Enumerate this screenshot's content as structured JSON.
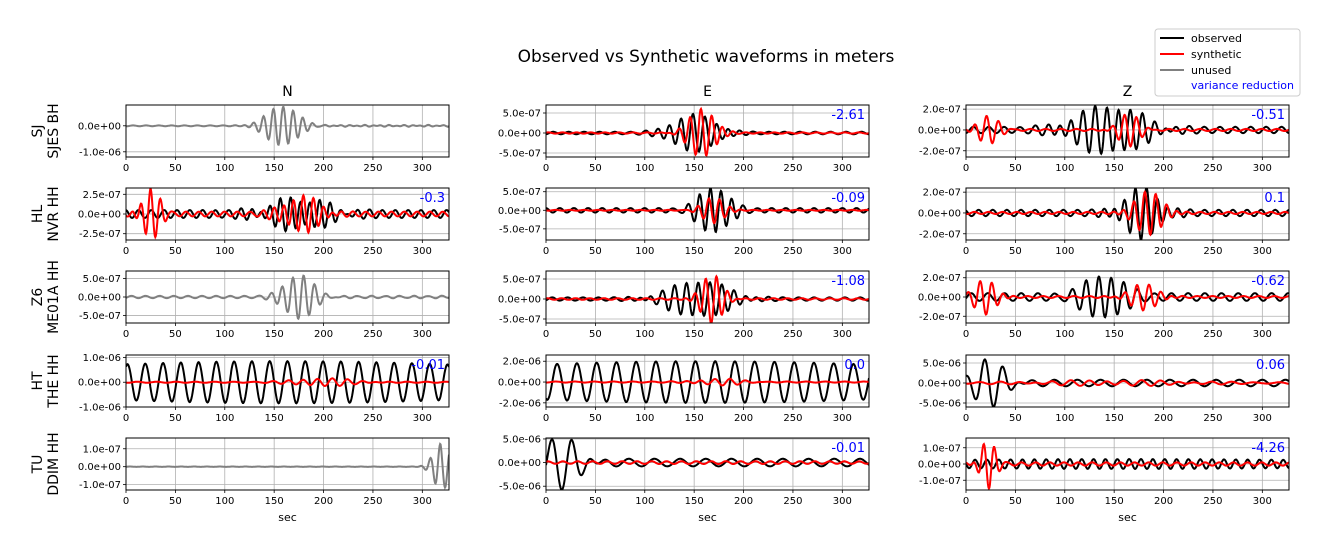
{
  "chart_data": {
    "type": "line",
    "title": "Observed vs Synthetic waveforms in meters",
    "columns": [
      "N",
      "E",
      "Z"
    ],
    "xlabel": "sec",
    "xlim": [
      0,
      327
    ],
    "xticks": [
      0,
      50,
      100,
      150,
      200,
      250,
      300
    ],
    "legend": {
      "placement": "top-right",
      "entries": [
        {
          "label": "observed",
          "color": "#000000"
        },
        {
          "label": "synthetic",
          "color": "#ff0000"
        },
        {
          "label": "unused",
          "color": "#808080"
        },
        {
          "label": "variance reduction",
          "color": "#0000ff"
        }
      ]
    },
    "grid": true,
    "stations": [
      {
        "network": "SJ",
        "station": "SJES BH"
      },
      {
        "network": "HL",
        "station": "NVR HH"
      },
      {
        "network": "Z6",
        "station": "ME01A HH"
      },
      {
        "network": "HT",
        "station": "THE HH"
      },
      {
        "network": "TU",
        "station": "DDIM HH"
      }
    ],
    "panels": [
      [
        {
          "used": false,
          "ylim": [
            -1.2e-06,
            8e-07
          ],
          "yticks": [
            [
              0,
              "0.0e+00"
            ],
            [
              -1e-06,
              "-1.0e-06"
            ]
          ],
          "vr": "",
          "obs": {
            "center": 158,
            "width": 22,
            "amp": 7.5e-07,
            "period": 10,
            "bg": 1.5e-08,
            "tail": 2e-08
          }
        },
        {
          "used": true,
          "ylim": [
            -6e-07,
            7e-07
          ],
          "yticks": [
            [
              5e-07,
              "5.0e-07"
            ],
            [
              0,
              "0.0e+00"
            ],
            [
              -5e-07,
              "-5.0e-07"
            ]
          ],
          "vr": "-2.61",
          "obs": {
            "center": 150,
            "width": 30,
            "amp": 4.5e-07,
            "period": 12,
            "bg": 3e-08,
            "tail": 0
          },
          "syn": {
            "center": 158,
            "width": 18,
            "amp": 6e-07,
            "period": 11,
            "bg": 1.5e-08
          }
        },
        {
          "used": true,
          "ylim": [
            -2.6e-07,
            2.4e-07
          ],
          "yticks": [
            [
              2e-07,
              "2.0e-07"
            ],
            [
              0,
              "0.0e+00"
            ],
            [
              -2e-07,
              "-2.0e-07"
            ]
          ],
          "vr": "-0.51",
          "obs": {
            "center": 145,
            "width": 45,
            "amp": 2.3e-07,
            "period": 12,
            "bg": 3e-08,
            "tail": 0
          },
          "syn": {
            "center": 22,
            "width": 15,
            "amp": 1.3e-07,
            "period": 12,
            "bg": 1e-08,
            "center2": 165,
            "width2": 15,
            "amp2": 1.5e-07
          }
        }
      ],
      [
        {
          "used": true,
          "ylim": [
            -3.3e-07,
            3.3e-07
          ],
          "yticks": [
            [
              2.5e-07,
              "2.5e-07"
            ],
            [
              0,
              "0.0e+00"
            ],
            [
              -2.5e-07,
              "-2.5e-07"
            ]
          ],
          "vr": "-0.3",
          "obs": {
            "center": 175,
            "width": 40,
            "amp": 1.9e-07,
            "period": 10,
            "bg": 5e-08,
            "tail": 0
          },
          "syn": {
            "center": 25,
            "width": 12,
            "amp": 3.2e-07,
            "period": 10,
            "bg": 3e-08,
            "center2": 178,
            "width2": 25,
            "amp2": 2.2e-07
          }
        },
        {
          "used": true,
          "ylim": [
            -8e-07,
            6e-07
          ],
          "yticks": [
            [
              5e-07,
              "5.0e-07"
            ],
            [
              0,
              "0.0e+00"
            ],
            [
              -5e-07,
              "-5.0e-07"
            ]
          ],
          "vr": "-0.09",
          "obs": {
            "center": 170,
            "width": 20,
            "amp": 6.5e-07,
            "period": 11,
            "bg": 6e-08,
            "tail": 0
          },
          "syn": {
            "center": 170,
            "width": 15,
            "amp": 3.5e-07,
            "period": 11,
            "bg": 1e-08
          }
        },
        {
          "used": true,
          "ylim": [
            -2.6e-07,
            2.4e-07
          ],
          "yticks": [
            [
              2e-07,
              "2.0e-07"
            ],
            [
              0,
              "0.0e+00"
            ],
            [
              -2e-07,
              "-2.0e-07"
            ]
          ],
          "vr": "0.1",
          "obs": {
            "center": 178,
            "width": 25,
            "amp": 2.3e-07,
            "period": 11,
            "bg": 3e-08,
            "tail": 0
          },
          "syn": {
            "center": 185,
            "width": 20,
            "amp": 2e-07,
            "period": 11,
            "bg": 1e-08
          }
        }
      ],
      [
        {
          "used": false,
          "ylim": [
            -7e-07,
            7e-07
          ],
          "yticks": [
            [
              5e-07,
              "5.0e-07"
            ],
            [
              0,
              "0.0e+00"
            ],
            [
              -5e-07,
              "-5.0e-07"
            ]
          ],
          "vr": "",
          "obs": {
            "center": 175,
            "width": 20,
            "amp": 6e-07,
            "period": 11,
            "bg": 3e-08,
            "tail": 5e-09
          }
        },
        {
          "used": true,
          "ylim": [
            -6e-07,
            7e-07
          ],
          "yticks": [
            [
              5e-07,
              "5.0e-07"
            ],
            [
              0,
              "0.0e+00"
            ],
            [
              -5e-07,
              "-5.0e-07"
            ]
          ],
          "vr": "-1.08",
          "obs": {
            "center": 155,
            "width": 40,
            "amp": 4.5e-07,
            "period": 12,
            "bg": 4e-08,
            "tail": 0
          },
          "syn": {
            "center": 168,
            "width": 15,
            "amp": 6e-07,
            "period": 11,
            "bg": 2e-08
          }
        },
        {
          "used": true,
          "ylim": [
            -2.7e-07,
            2.7e-07
          ],
          "yticks": [
            [
              2e-07,
              "2.0e-07"
            ],
            [
              0,
              "0.0e+00"
            ],
            [
              -2e-07,
              "-2.0e-07"
            ]
          ],
          "vr": "-0.62",
          "obs": {
            "center": 140,
            "width": 25,
            "amp": 2.5e-07,
            "period": 13,
            "bg": 4e-08,
            "tail": 0
          },
          "syn": {
            "center": 20,
            "width": 15,
            "amp": 1.8e-07,
            "period": 12,
            "bg": 1e-08,
            "center2": 180,
            "width2": 20,
            "amp2": 1.3e-07
          }
        }
      ],
      [
        {
          "used": true,
          "ylim": [
            -1e-06,
            1.1e-06
          ],
          "yticks": [
            [
              1e-06,
              "1.0e-06"
            ],
            [
              0,
              "0.0e+00"
            ],
            [
              -1e-06,
              "-1.0e-06"
            ]
          ],
          "vr": "-0.01",
          "obs": {
            "center": 160,
            "width": 400,
            "amp": 8.5e-07,
            "period": 18,
            "bg": 0,
            "tail": 0
          },
          "syn": {
            "center": 200,
            "width": 40,
            "amp": 1.5e-07,
            "period": 15,
            "bg": 2e-08
          }
        },
        {
          "used": true,
          "ylim": [
            -2.4e-06,
            2.6e-06
          ],
          "yticks": [
            [
              2e-06,
              "2.0e-06"
            ],
            [
              0,
              "0.0e+00"
            ],
            [
              -2e-06,
              "-2.0e-06"
            ]
          ],
          "vr": "0.0",
          "obs": {
            "center": 160,
            "width": 400,
            "amp": 2e-06,
            "period": 20,
            "bg": 0,
            "tail": 0
          },
          "syn": {
            "center": 175,
            "width": 30,
            "amp": 3e-07,
            "period": 15,
            "bg": 5e-08
          }
        },
        {
          "used": true,
          "ylim": [
            -6e-06,
            7e-06
          ],
          "yticks": [
            [
              5e-06,
              "5.0e-06"
            ],
            [
              0,
              "0.0e+00"
            ],
            [
              -5e-06,
              "-5.0e-06"
            ]
          ],
          "vr": "0.06",
          "obs": {
            "center": 25,
            "width": 22,
            "amp": 5.5e-06,
            "period": 18,
            "bg": 8e-07,
            "tail": 0
          },
          "syn": {
            "center": 150,
            "width": 100,
            "amp": 6e-07,
            "period": 18,
            "bg": 2e-07
          }
        }
      ],
      [
        {
          "used": false,
          "ylim": [
            -1.3e-07,
            1.6e-07
          ],
          "yticks": [
            [
              1e-07,
              "1.0e-07"
            ],
            [
              0,
              "0.0e+00"
            ],
            [
              -1e-07,
              "-1.0e-07"
            ]
          ],
          "vr": "",
          "obs": {
            "center": 320,
            "width": 12,
            "amp": 1.3e-07,
            "period": 10,
            "bg": 1e-09,
            "tail": 1e-08
          }
        },
        {
          "used": true,
          "ylim": [
            -5.8e-06,
            5.2e-06
          ],
          "yticks": [
            [
              5e-06,
              "5.0e-06"
            ],
            [
              0,
              "0.0e+00"
            ],
            [
              -5e-06,
              "-5.0e-06"
            ]
          ],
          "vr": "-0.01",
          "obs": {
            "center": 18,
            "width": 25,
            "amp": 5.2e-06,
            "period": 20,
            "bg": 8e-07,
            "tail": 0
          },
          "syn": {
            "center": 160,
            "width": 400,
            "amp": 3e-07,
            "period": 15,
            "bg": 0
          }
        },
        {
          "used": true,
          "ylim": [
            -1.6e-07,
            1.6e-07
          ],
          "yticks": [
            [
              1e-07,
              "1.0e-07"
            ],
            [
              0,
              "0.0e+00"
            ],
            [
              -1e-07,
              "-1.0e-07"
            ]
          ],
          "vr": "-4.26",
          "obs": {
            "center": 160,
            "width": 400,
            "amp": 3e-08,
            "period": 12,
            "bg": 0,
            "tail": 0
          },
          "syn": {
            "center": 22,
            "width": 10,
            "amp": 1.5e-07,
            "period": 11,
            "bg": 1e-08
          }
        }
      ]
    ]
  }
}
